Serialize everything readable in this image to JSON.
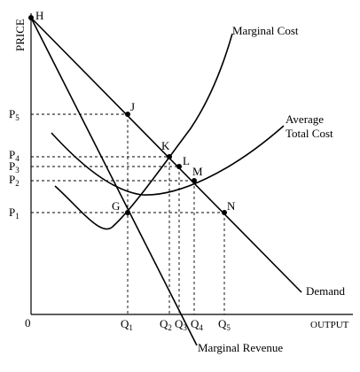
{
  "axes": {
    "y_label": "PRICE",
    "x_label": "OUTPUT",
    "origin": "0"
  },
  "price_labels": [
    {
      "base": "P",
      "sub": "5"
    },
    {
      "base": "P",
      "sub": "4"
    },
    {
      "base": "P",
      "sub": "3"
    },
    {
      "base": "P",
      "sub": "2"
    },
    {
      "base": "P",
      "sub": "1"
    }
  ],
  "quantity_labels": [
    {
      "base": "Q",
      "sub": "1"
    },
    {
      "base": "Q",
      "sub": "2"
    },
    {
      "base": "Q",
      "sub": "3"
    },
    {
      "base": "Q",
      "sub": "4"
    },
    {
      "base": "Q",
      "sub": "5"
    }
  ],
  "point_labels": [
    "H",
    "J",
    "K",
    "L",
    "M",
    "N",
    "G"
  ],
  "curve_labels": {
    "marginal_cost": "Marginal Cost",
    "atc_line1": "Average",
    "atc_line2": "Total Cost",
    "demand": "Demand",
    "marginal_revenue": "Marginal Revenue"
  }
}
